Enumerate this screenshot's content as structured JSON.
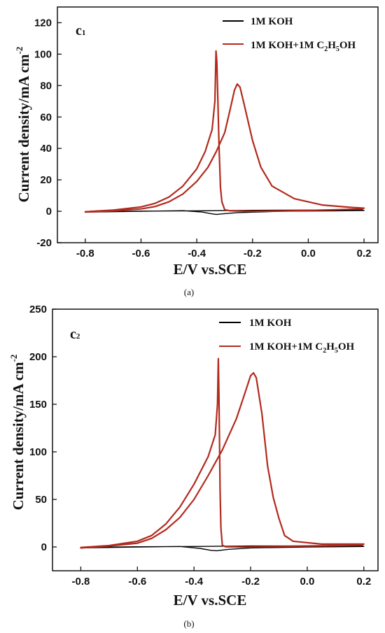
{
  "chart_data": [
    {
      "type": "line",
      "panel_label": "c",
      "panel_label_sub": "1",
      "caption": "(a)",
      "xlabel": "E/V vs.SCE",
      "ylabel": "Current density/mA cm",
      "ylabel_sup": "-2",
      "xlim": [
        -0.9,
        0.25
      ],
      "ylim": [
        -20,
        130
      ],
      "xticks": [
        -0.8,
        -0.6,
        -0.4,
        -0.2,
        0.0,
        0.2
      ],
      "xtick_labels": [
        "-0.8",
        "-0.6",
        "-0.4",
        "-0.2",
        "0.0",
        "0.2"
      ],
      "yticks": [
        -20,
        0,
        20,
        40,
        60,
        80,
        100,
        120
      ],
      "ytick_labels": [
        "-20",
        "0",
        "20",
        "40",
        "60",
        "80",
        "100",
        "120"
      ],
      "legend_position": "top-right",
      "series": [
        {
          "name": "1M KOH",
          "color": "#000000",
          "points": [
            [
              -0.8,
              -0.5
            ],
            [
              -0.6,
              0.0
            ],
            [
              -0.45,
              0.4
            ],
            [
              -0.38,
              -0.5
            ],
            [
              -0.35,
              -1.5
            ],
            [
              -0.33,
              -2.0
            ],
            [
              -0.3,
              -1.5
            ],
            [
              -0.25,
              -0.8
            ],
            [
              -0.1,
              0.0
            ],
            [
              0.1,
              0.3
            ],
            [
              0.2,
              0.5
            ],
            [
              0.19,
              1.0
            ],
            [
              0.0,
              0.8
            ],
            [
              -0.2,
              0.6
            ],
            [
              -0.4,
              0.3
            ],
            [
              -0.6,
              0.1
            ],
            [
              -0.8,
              -0.3
            ]
          ]
        },
        {
          "name": "1M KOH+1M C2H5OH",
          "legend_parts": [
            "1M KOH+1M C",
            "2",
            "H",
            "5",
            "OH"
          ],
          "color": "#b22a1e",
          "points": [
            [
              -0.8,
              -0.5
            ],
            [
              -0.7,
              0.3
            ],
            [
              -0.6,
              1.5
            ],
            [
              -0.55,
              3.0
            ],
            [
              -0.5,
              6.0
            ],
            [
              -0.45,
              11.0
            ],
            [
              -0.4,
              19.0
            ],
            [
              -0.36,
              28.0
            ],
            [
              -0.33,
              38.0
            ],
            [
              -0.3,
              50.0
            ],
            [
              -0.28,
              65.0
            ],
            [
              -0.265,
              77.0
            ],
            [
              -0.255,
              81.0
            ],
            [
              -0.245,
              79.0
            ],
            [
              -0.23,
              68.0
            ],
            [
              -0.2,
              45.0
            ],
            [
              -0.17,
              28.0
            ],
            [
              -0.13,
              16.0
            ],
            [
              -0.05,
              8.0
            ],
            [
              0.05,
              4.0
            ],
            [
              0.15,
              2.5
            ],
            [
              0.2,
              2.0
            ],
            [
              0.19,
              1.5
            ],
            [
              0.1,
              1.0
            ],
            [
              0.0,
              0.5
            ],
            [
              -0.1,
              0.2
            ],
            [
              -0.2,
              0.0
            ],
            [
              -0.28,
              0.3
            ],
            [
              -0.3,
              1.0
            ],
            [
              -0.31,
              6.0
            ],
            [
              -0.315,
              15.0
            ],
            [
              -0.32,
              40.0
            ],
            [
              -0.325,
              75.0
            ],
            [
              -0.328,
              95.0
            ],
            [
              -0.331,
              102.0
            ],
            [
              -0.335,
              70.0
            ],
            [
              -0.345,
              52.0
            ],
            [
              -0.37,
              38.0
            ],
            [
              -0.4,
              27.0
            ],
            [
              -0.45,
              16.0
            ],
            [
              -0.5,
              9.0
            ],
            [
              -0.55,
              5.0
            ],
            [
              -0.6,
              2.8
            ],
            [
              -0.7,
              0.8
            ],
            [
              -0.8,
              -0.3
            ]
          ]
        }
      ]
    },
    {
      "type": "line",
      "panel_label": "c",
      "panel_label_sub": "2",
      "caption": "(b)",
      "xlabel": "E/V vs.SCE",
      "ylabel": "Current density/mA cm",
      "ylabel_sup": "-2",
      "xlim": [
        -0.9,
        0.25
      ],
      "ylim": [
        -25,
        250
      ],
      "xticks": [
        -0.8,
        -0.6,
        -0.4,
        -0.2,
        0.0,
        0.2
      ],
      "xtick_labels": [
        "-0.8",
        "-0.6",
        "-0.4",
        "-0.2",
        "0.0",
        "0.2"
      ],
      "yticks": [
        0,
        50,
        100,
        150,
        200,
        250
      ],
      "ytick_labels": [
        "0",
        "50",
        "100",
        "150",
        "200",
        "250"
      ],
      "legend_position": "top-right",
      "series": [
        {
          "name": "1M KOH",
          "color": "#000000",
          "points": [
            [
              -0.8,
              -1.0
            ],
            [
              -0.6,
              0.0
            ],
            [
              -0.45,
              0.5
            ],
            [
              -0.38,
              -1.5
            ],
            [
              -0.34,
              -3.5
            ],
            [
              -0.32,
              -4.0
            ],
            [
              -0.28,
              -2.5
            ],
            [
              -0.2,
              -1.0
            ],
            [
              0.0,
              0.0
            ],
            [
              0.2,
              0.5
            ],
            [
              0.19,
              1.5
            ],
            [
              0.0,
              1.2
            ],
            [
              -0.2,
              1.0
            ],
            [
              -0.4,
              0.5
            ],
            [
              -0.6,
              0.2
            ],
            [
              -0.8,
              -0.5
            ]
          ]
        },
        {
          "name": "1M KOH+1M C2H5OH",
          "legend_parts": [
            "1M KOH+1M C",
            "2",
            "H",
            "5",
            "OH"
          ],
          "color": "#b22a1e",
          "points": [
            [
              -0.8,
              -1.0
            ],
            [
              -0.7,
              1.0
            ],
            [
              -0.6,
              4.0
            ],
            [
              -0.55,
              9.0
            ],
            [
              -0.5,
              18.0
            ],
            [
              -0.45,
              31.0
            ],
            [
              -0.4,
              50.0
            ],
            [
              -0.35,
              75.0
            ],
            [
              -0.3,
              102.0
            ],
            [
              -0.25,
              135.0
            ],
            [
              -0.22,
              162.0
            ],
            [
              -0.2,
              180.0
            ],
            [
              -0.19,
              183.0
            ],
            [
              -0.18,
              178.0
            ],
            [
              -0.16,
              140.0
            ],
            [
              -0.14,
              85.0
            ],
            [
              -0.12,
              52.0
            ],
            [
              -0.1,
              30.0
            ],
            [
              -0.08,
              12.0
            ],
            [
              -0.05,
              6.0
            ],
            [
              0.05,
              3.0
            ],
            [
              0.2,
              3.0
            ],
            [
              0.19,
              2.0
            ],
            [
              0.1,
              1.5
            ],
            [
              0.0,
              1.0
            ],
            [
              -0.1,
              0.5
            ],
            [
              -0.2,
              0.0
            ],
            [
              -0.29,
              0.3
            ],
            [
              -0.3,
              2.0
            ],
            [
              -0.305,
              20.0
            ],
            [
              -0.308,
              60.0
            ],
            [
              -0.31,
              110.0
            ],
            [
              -0.312,
              160.0
            ],
            [
              -0.314,
              198.0
            ],
            [
              -0.317,
              150.0
            ],
            [
              -0.325,
              118.0
            ],
            [
              -0.35,
              95.0
            ],
            [
              -0.4,
              66.0
            ],
            [
              -0.45,
              42.0
            ],
            [
              -0.5,
              24.0
            ],
            [
              -0.55,
              12.0
            ],
            [
              -0.6,
              6.0
            ],
            [
              -0.7,
              1.5
            ],
            [
              -0.8,
              -0.5
            ]
          ]
        }
      ]
    }
  ]
}
